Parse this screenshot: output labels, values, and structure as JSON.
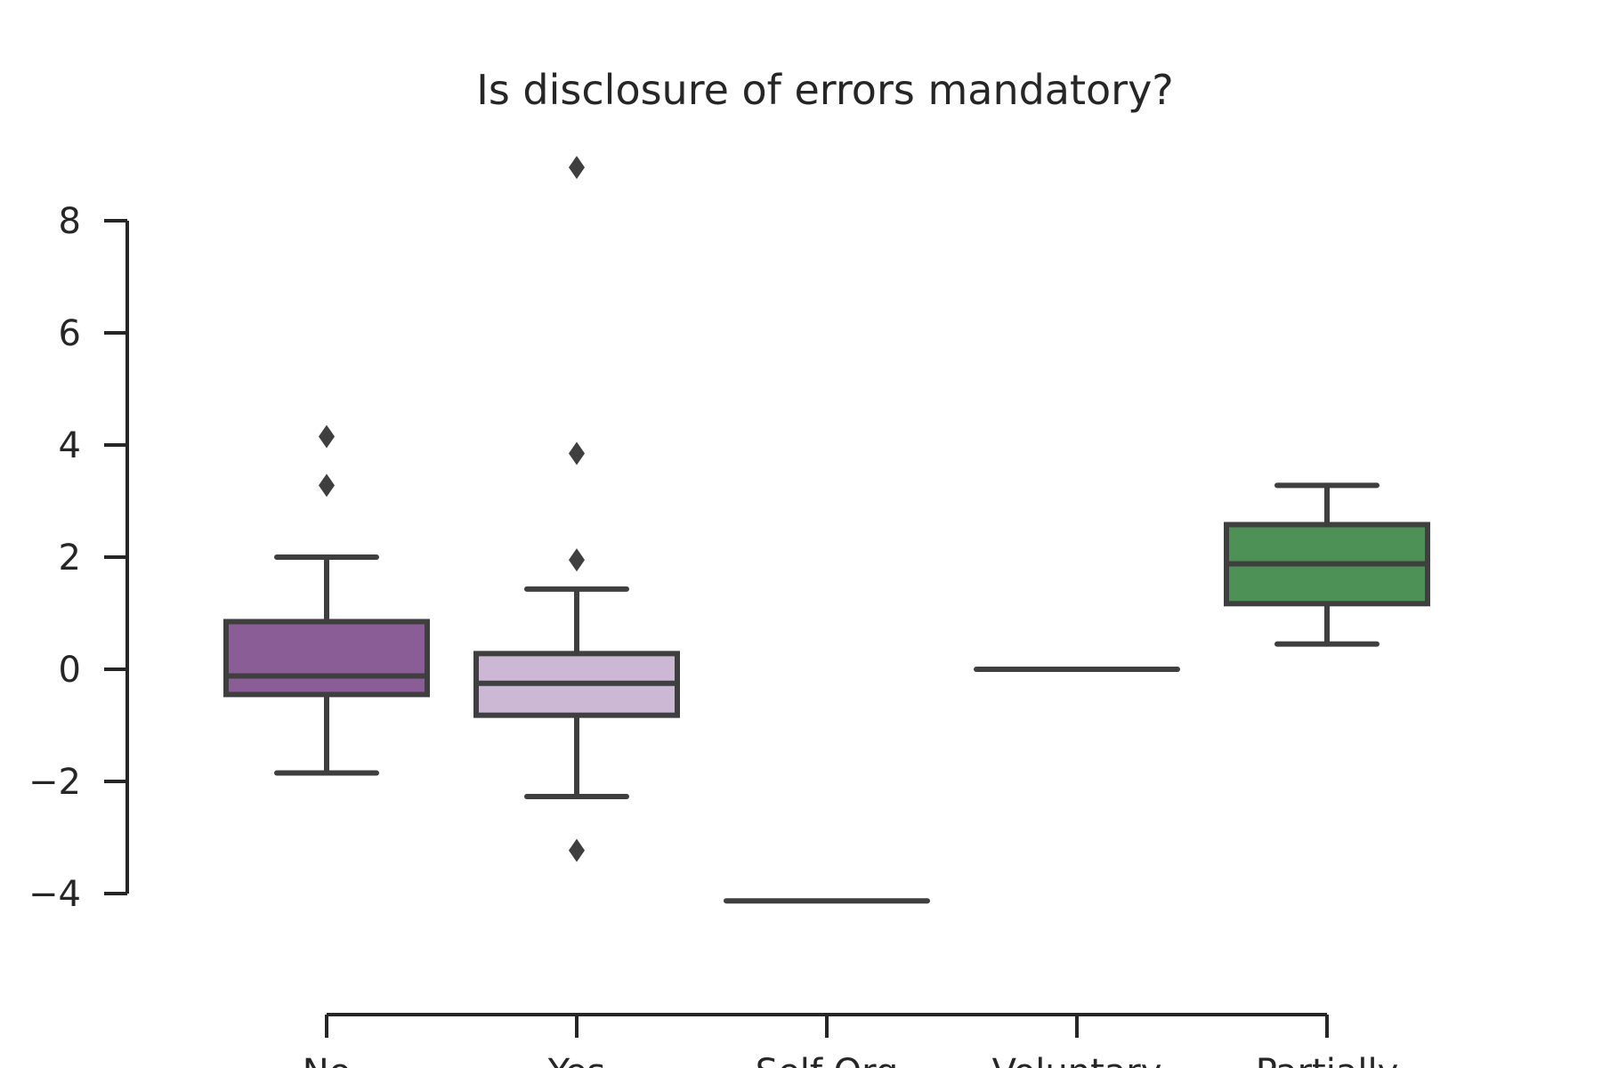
{
  "chart_data": {
    "type": "box",
    "title": "Is disclosure of errors mandatory?",
    "xlabel": "",
    "ylabel": "",
    "ylim": [
      -4,
      8
    ],
    "yticks": [
      8,
      6,
      4,
      2,
      0,
      -2,
      -4
    ],
    "ytick_labels": [
      "8",
      "6",
      "4",
      "2",
      "0",
      "−2",
      "−4"
    ],
    "categories": [
      "No",
      "Yes",
      "Self Org",
      "Voluntary",
      "Partially"
    ],
    "boxes": [
      {
        "category": "No",
        "color": "#8b5d97",
        "whislo": -1.85,
        "q1": -0.45,
        "med": -0.12,
        "q3": 0.85,
        "whishi": 2.0,
        "fliers": [
          4.15,
          3.28
        ]
      },
      {
        "category": "Yes",
        "color": "#ccb8d5",
        "whislo": -2.27,
        "q1": -0.82,
        "med": -0.25,
        "q3": 0.28,
        "whishi": 1.43,
        "fliers": [
          8.95,
          3.85,
          1.95,
          -3.23
        ]
      },
      {
        "category": "Self Org",
        "color": "#ffffff",
        "whislo": -4.13,
        "q1": -4.13,
        "med": -4.13,
        "q3": -4.13,
        "whishi": -4.13,
        "fliers": []
      },
      {
        "category": "Voluntary",
        "color": "#ffffff",
        "whislo": 0.0,
        "q1": 0.0,
        "med": 0.0,
        "q3": 0.0,
        "whishi": 0.0,
        "fliers": []
      },
      {
        "category": "Partially",
        "color": "#4e9156",
        "whislo": 0.45,
        "q1": 1.17,
        "med": 1.88,
        "q3": 2.58,
        "whishi": 3.28,
        "fliers": []
      }
    ],
    "grid": false,
    "legend": "none"
  }
}
